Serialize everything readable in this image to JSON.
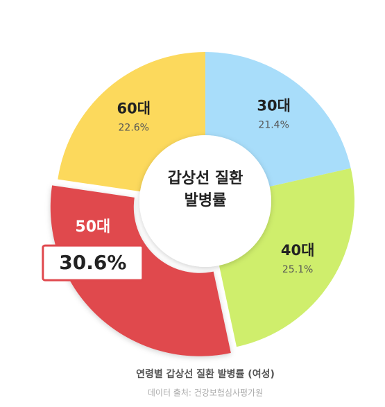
{
  "chart_data": {
    "type": "pie",
    "center_text": [
      "갑상선 질환",
      "발병률"
    ],
    "categories": [
      "30대",
      "40대",
      "50대",
      "60대"
    ],
    "values": [
      21.4,
      25.1,
      30.6,
      22.6
    ],
    "value_labels": [
      "21.4%",
      "25.1%",
      "30.6%",
      "22.6%"
    ],
    "colors": [
      "#a8ddfa",
      "#cfee6c",
      "#e0484d",
      "#fcd95c"
    ],
    "exploded": [
      false,
      false,
      true,
      false
    ],
    "caption": "연령별 갑상선 질환 발병률 (여성)",
    "source": "데이터 출처: 건강보험심사평가원"
  }
}
